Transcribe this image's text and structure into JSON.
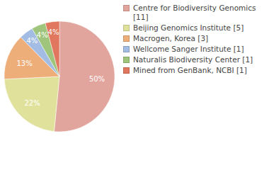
{
  "chart_data": {
    "type": "pie",
    "categories": [
      "Centre for Biodiversity Genomics [11]",
      "Beijing Genomics Institute [5]",
      "Macrogen, Korea [3]",
      "Wellcome Sanger Institute [1]",
      "Naturalis Biodiversity Center [1]",
      "Mined from GenBank, NCBI [1]"
    ],
    "values": [
      50,
      22,
      13,
      4,
      4,
      4
    ],
    "value_labels": [
      "50%",
      "22%",
      "13%",
      "4%",
      "4%",
      "4%"
    ],
    "colors": [
      "#e2a59d",
      "#e0e29c",
      "#eeae7a",
      "#a2bce4",
      "#9fc57d",
      "#e0775e"
    ],
    "data_labels": true,
    "legend": "upper right"
  }
}
